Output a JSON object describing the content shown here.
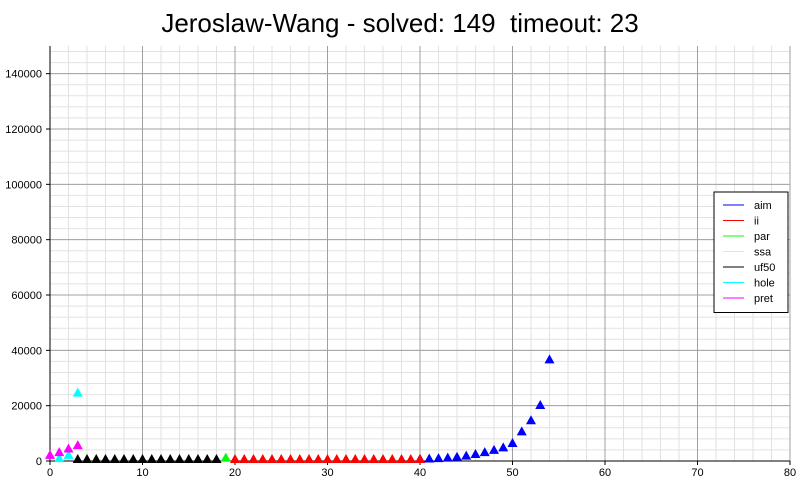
{
  "chart_data": {
    "type": "scatter",
    "title": "Jeroslaw-Wang - solved: 149  timeout: 23",
    "xlabel": "",
    "ylabel": "",
    "xlim": [
      0,
      80
    ],
    "ylim": [
      0,
      150000
    ],
    "x_ticks": [
      "0",
      "10",
      "20",
      "30",
      "40",
      "50",
      "60",
      "70",
      "80"
    ],
    "y_ticks": [
      "0",
      "20000",
      "40000",
      "60000",
      "80000",
      "100000",
      "120000",
      "140000"
    ],
    "x_tick_values": [
      0,
      10,
      20,
      30,
      40,
      50,
      60,
      70,
      80
    ],
    "y_tick_values": [
      0,
      20000,
      40000,
      60000,
      80000,
      100000,
      120000,
      140000
    ],
    "grid": true,
    "legend_position": "right",
    "marker": "triangle",
    "series": [
      {
        "name": "aim",
        "color": "#0000ff",
        "x": [
          40,
          41,
          42,
          43,
          44,
          45,
          46,
          47,
          48,
          49,
          50,
          51,
          52,
          53,
          54
        ],
        "y": [
          100,
          200,
          300,
          500,
          800,
          1200,
          1800,
          2500,
          3300,
          4200,
          5800,
          10000,
          14000,
          19500,
          36000
        ]
      },
      {
        "name": "ii",
        "color": "#ff0000",
        "x": [
          20,
          21,
          22,
          23,
          24,
          25,
          26,
          27,
          28,
          29,
          30,
          31,
          32,
          33,
          34,
          35,
          36,
          37,
          38,
          39,
          40
        ],
        "y": [
          0,
          0,
          0,
          0,
          0,
          0,
          0,
          0,
          0,
          0,
          0,
          0,
          0,
          0,
          0,
          0,
          0,
          0,
          0,
          0,
          0
        ]
      },
      {
        "name": "par",
        "color": "#00ff00",
        "x": [
          19
        ],
        "y": [
          500
        ]
      },
      {
        "name": "ssa",
        "color": "#ffff00",
        "x": [
          4,
          5
        ],
        "y": [
          0,
          0
        ]
      },
      {
        "name": "uf50",
        "color": "#000000",
        "x": [
          3,
          4,
          5,
          6,
          7,
          8,
          9,
          10,
          11,
          12,
          13,
          14,
          15,
          16,
          17,
          18
        ],
        "y": [
          0,
          0,
          0,
          0,
          0,
          0,
          0,
          0,
          0,
          0,
          0,
          0,
          0,
          0,
          0,
          0
        ]
      },
      {
        "name": "hole",
        "color": "#00ffff",
        "x": [
          1,
          2,
          3
        ],
        "y": [
          300,
          1500,
          24000
        ]
      },
      {
        "name": "pret",
        "color": "#ff00ff",
        "x": [
          0,
          1,
          2,
          3
        ],
        "y": [
          1500,
          2500,
          3800,
          5000
        ]
      }
    ]
  }
}
